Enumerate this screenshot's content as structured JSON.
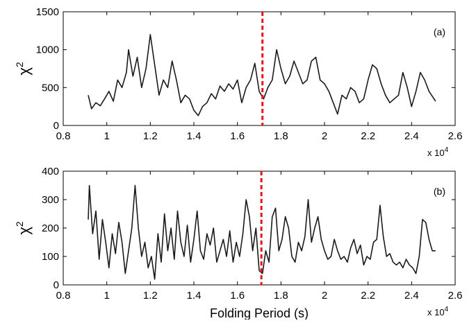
{
  "chart_data": [
    {
      "type": "line",
      "panel_label": "(a)",
      "ylabel": "χ",
      "ylabel_sup": "2",
      "xlabel": "",
      "xlim": [
        0.8,
        2.6
      ],
      "ylim": [
        0,
        1500
      ],
      "xticks": [
        0.8,
        1,
        1.2,
        1.4,
        1.6,
        1.8,
        2,
        2.2,
        2.4,
        2.6
      ],
      "yticks": [
        0,
        500,
        1000,
        1500
      ],
      "x_multiplier": "x 10",
      "x_multiplier_exp": "4",
      "marker_x": 1.715,
      "series": [
        {
          "x": [
            0.915,
            0.93,
            0.95,
            0.97,
            0.99,
            1.01,
            1.03,
            1.05,
            1.07,
            1.09,
            1.1,
            1.12,
            1.14,
            1.16,
            1.18,
            1.2,
            1.22,
            1.24,
            1.26,
            1.28,
            1.3,
            1.32,
            1.34,
            1.36,
            1.38,
            1.4,
            1.42,
            1.44,
            1.46,
            1.48,
            1.5,
            1.52,
            1.54,
            1.56,
            1.58,
            1.6,
            1.62,
            1.64,
            1.66,
            1.68,
            1.7,
            1.72,
            1.74,
            1.76,
            1.78,
            1.8,
            1.82,
            1.84,
            1.86,
            1.88,
            1.9,
            1.92,
            1.94,
            1.96,
            1.98,
            2.0,
            2.02,
            2.04,
            2.06,
            2.08,
            2.1,
            2.12,
            2.14,
            2.16,
            2.18,
            2.2,
            2.22,
            2.24,
            2.26,
            2.28,
            2.3,
            2.32,
            2.34,
            2.36,
            2.38,
            2.4,
            2.42,
            2.44,
            2.46,
            2.48,
            2.51
          ],
          "y": [
            400,
            220,
            300,
            260,
            350,
            450,
            320,
            600,
            500,
            700,
            1000,
            650,
            900,
            500,
            750,
            1200,
            800,
            400,
            600,
            500,
            850,
            600,
            300,
            400,
            350,
            200,
            130,
            250,
            300,
            420,
            350,
            520,
            450,
            550,
            480,
            600,
            300,
            500,
            600,
            820,
            450,
            350,
            500,
            600,
            1000,
            750,
            550,
            650,
            850,
            700,
            550,
            600,
            850,
            900,
            600,
            550,
            450,
            300,
            150,
            400,
            350,
            500,
            450,
            300,
            350,
            600,
            800,
            750,
            550,
            400,
            300,
            350,
            400,
            700,
            500,
            250,
            450,
            700,
            600,
            450,
            320
          ]
        }
      ]
    },
    {
      "type": "line",
      "panel_label": "(b)",
      "ylabel": "χ",
      "ylabel_sup": "2",
      "xlabel": "Folding Period (s)",
      "xlim": [
        0.8,
        2.6
      ],
      "ylim": [
        0,
        400
      ],
      "xticks": [
        0.8,
        1,
        1.2,
        1.4,
        1.6,
        1.8,
        2,
        2.2,
        2.4,
        2.6
      ],
      "yticks": [
        0,
        100,
        200,
        300,
        400
      ],
      "x_multiplier": "x 10",
      "x_multiplier_exp": "4",
      "marker_x": 1.71,
      "series": [
        {
          "x": [
            0.915,
            0.92,
            0.935,
            0.95,
            0.965,
            0.98,
            0.995,
            1.01,
            1.025,
            1.04,
            1.055,
            1.07,
            1.085,
            1.1,
            1.115,
            1.13,
            1.145,
            1.16,
            1.175,
            1.19,
            1.205,
            1.22,
            1.235,
            1.25,
            1.265,
            1.28,
            1.295,
            1.31,
            1.325,
            1.34,
            1.355,
            1.37,
            1.385,
            1.4,
            1.415,
            1.43,
            1.445,
            1.46,
            1.475,
            1.49,
            1.505,
            1.52,
            1.535,
            1.55,
            1.565,
            1.58,
            1.595,
            1.61,
            1.625,
            1.64,
            1.655,
            1.67,
            1.685,
            1.7,
            1.715,
            1.73,
            1.745,
            1.76,
            1.775,
            1.79,
            1.805,
            1.82,
            1.835,
            1.85,
            1.865,
            1.88,
            1.895,
            1.91,
            1.925,
            1.94,
            1.955,
            1.97,
            1.985,
            2.0,
            2.015,
            2.03,
            2.045,
            2.06,
            2.075,
            2.09,
            2.105,
            2.12,
            2.135,
            2.15,
            2.165,
            2.18,
            2.195,
            2.21,
            2.225,
            2.24,
            2.255,
            2.27,
            2.285,
            2.3,
            2.315,
            2.33,
            2.345,
            2.36,
            2.375,
            2.39,
            2.405,
            2.42,
            2.435,
            2.45,
            2.465,
            2.48,
            2.495,
            2.51
          ],
          "y": [
            230,
            350,
            180,
            260,
            90,
            230,
            150,
            60,
            180,
            110,
            220,
            150,
            40,
            120,
            200,
            350,
            200,
            100,
            150,
            60,
            100,
            20,
            180,
            80,
            250,
            120,
            200,
            90,
            260,
            150,
            100,
            210,
            80,
            160,
            260,
            120,
            90,
            180,
            140,
            200,
            80,
            120,
            160,
            100,
            190,
            80,
            150,
            100,
            180,
            300,
            240,
            120,
            200,
            50,
            40,
            120,
            80,
            240,
            270,
            120,
            160,
            240,
            200,
            100,
            80,
            150,
            120,
            170,
            300,
            150,
            200,
            240,
            160,
            120,
            90,
            100,
            160,
            120,
            90,
            100,
            80,
            130,
            160,
            110,
            140,
            70,
            100,
            90,
            150,
            160,
            280,
            170,
            100,
            110,
            80,
            70,
            80,
            60,
            90,
            70,
            60,
            40,
            100,
            230,
            220,
            160,
            120,
            120
          ]
        }
      ]
    }
  ]
}
